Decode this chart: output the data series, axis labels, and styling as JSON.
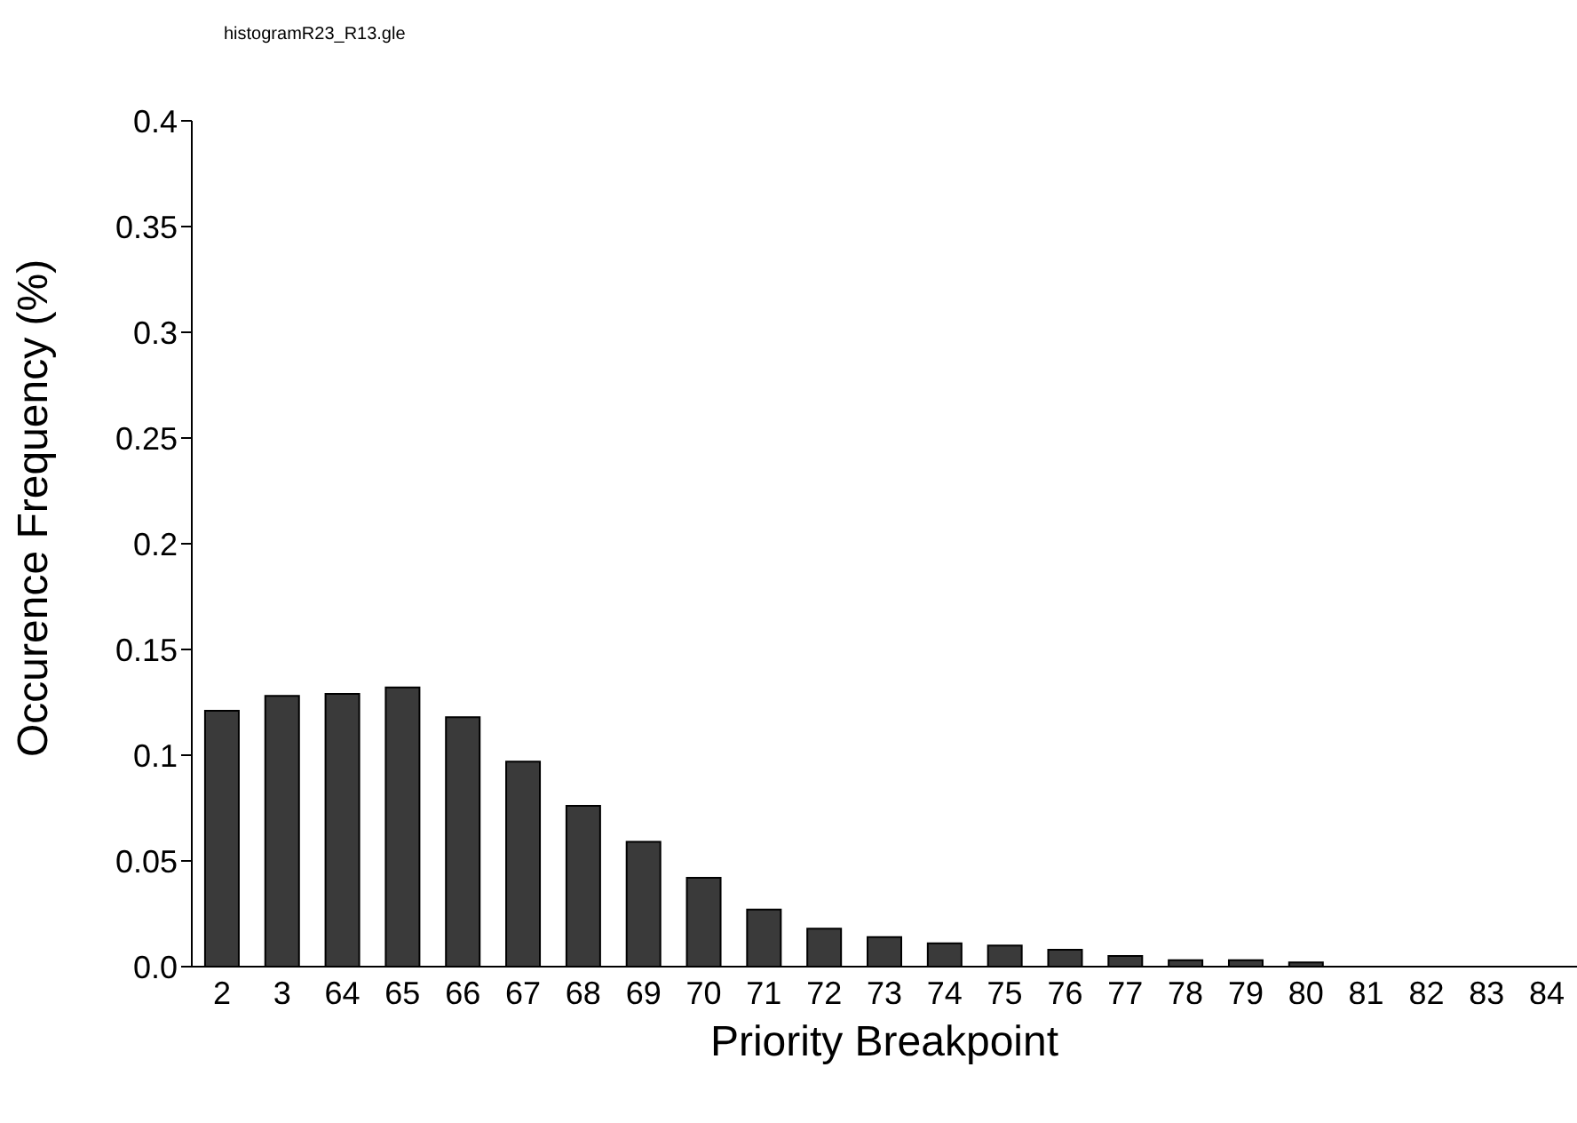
{
  "chart_data": {
    "type": "bar",
    "title": "histogramR23_R13.gle",
    "xlabel": "Priority Breakpoint",
    "ylabel": "Occurence Frequency (%)",
    "categories": [
      "2",
      "3",
      "64",
      "65",
      "66",
      "67",
      "68",
      "69",
      "70",
      "71",
      "72",
      "73",
      "74",
      "75",
      "76",
      "77",
      "78",
      "79",
      "80",
      "81",
      "82",
      "83",
      "84"
    ],
    "values": [
      0.121,
      0.128,
      0.129,
      0.132,
      0.118,
      0.097,
      0.076,
      0.059,
      0.042,
      0.027,
      0.018,
      0.014,
      0.011,
      0.01,
      0.008,
      0.005,
      0.003,
      0.003,
      0.002,
      0,
      0,
      0,
      0
    ],
    "color": "#3a3a3a",
    "ylim": [
      0,
      0.4
    ],
    "yticks": [
      {
        "value": 0,
        "label": "0.0"
      },
      0.05,
      0.1,
      0.15,
      0.2,
      0.25,
      0.3,
      0.35,
      0.4
    ],
    "grid": false
  }
}
